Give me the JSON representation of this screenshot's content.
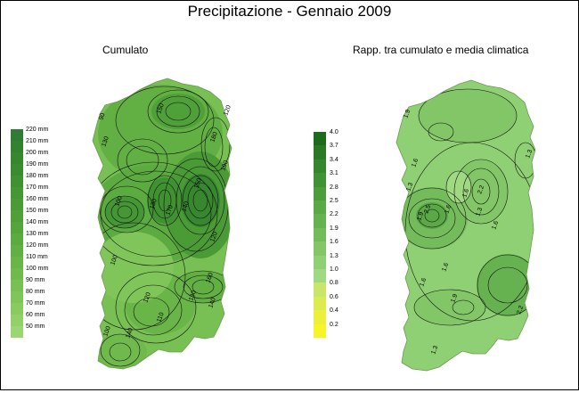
{
  "title": "Precipitazione - Gennaio 2009",
  "left_panel": {
    "subtitle": "Cumulato",
    "legend": [
      {
        "label": "220 mm",
        "color": "#2e7d32"
      },
      {
        "label": "210 mm",
        "color": "#33822f"
      },
      {
        "label": "200 mm",
        "color": "#37872f"
      },
      {
        "label": "190 mm",
        "color": "#3b8c30"
      },
      {
        "label": "180 mm",
        "color": "#409132"
      },
      {
        "label": "170 mm",
        "color": "#459634"
      },
      {
        "label": "160 mm",
        "color": "#4a9b36"
      },
      {
        "label": "150 mm",
        "color": "#50a039"
      },
      {
        "label": "140 mm",
        "color": "#56a53c"
      },
      {
        "label": "130 mm",
        "color": "#5cab40"
      },
      {
        "label": "120 mm",
        "color": "#62b044"
      },
      {
        "label": "110 mm",
        "color": "#69b548"
      },
      {
        "label": "100 mm",
        "color": "#70ba4d"
      },
      {
        "label": "90 mm",
        "color": "#78c053"
      },
      {
        "label": "80 mm",
        "color": "#80c559"
      },
      {
        "label": "70 mm",
        "color": "#89cb60"
      },
      {
        "label": "60 mm",
        "color": "#92d068"
      },
      {
        "label": "50 mm",
        "color": "#9cd672"
      }
    ],
    "contour_labels": [
      "90",
      "150",
      "130",
      "120",
      "180",
      "190",
      "100",
      "170",
      "150",
      "130",
      "140",
      "120",
      "100",
      "160",
      "120",
      "140",
      "130",
      "110",
      "140",
      "100"
    ]
  },
  "right_panel": {
    "subtitle": "Rapp. tra cumulato e media climatica",
    "legend": [
      {
        "label": "4.0",
        "color": "#1e6b1e"
      },
      {
        "label": "3.7",
        "color": "#2a7a25"
      },
      {
        "label": "3.4",
        "color": "#35862c"
      },
      {
        "label": "3.1",
        "color": "#419234"
      },
      {
        "label": "2.8",
        "color": "#4d9d3d"
      },
      {
        "label": "2.5",
        "color": "#5aa846"
      },
      {
        "label": "2.2",
        "color": "#67b250"
      },
      {
        "label": "1.9",
        "color": "#74bc5b"
      },
      {
        "label": "1.6",
        "color": "#82c667"
      },
      {
        "label": "1.3",
        "color": "#90d074"
      },
      {
        "label": "1.0",
        "color": "#9fda82"
      },
      {
        "label": "0.8",
        "color": "#c8e66a"
      },
      {
        "label": "0.6",
        "color": "#dcec50"
      },
      {
        "label": "0.4",
        "color": "#ecf03a"
      },
      {
        "label": "0.2",
        "color": "#f7f428"
      }
    ],
    "contour_labels": [
      "1.9",
      "1.6",
      "1.3",
      "1.6",
      "1.9",
      "2.2",
      "1.6",
      "1.3",
      "2.5",
      "1.6",
      "1.9",
      "1.6",
      "1.3",
      "2.2",
      "1.6",
      "1.3"
    ]
  }
}
